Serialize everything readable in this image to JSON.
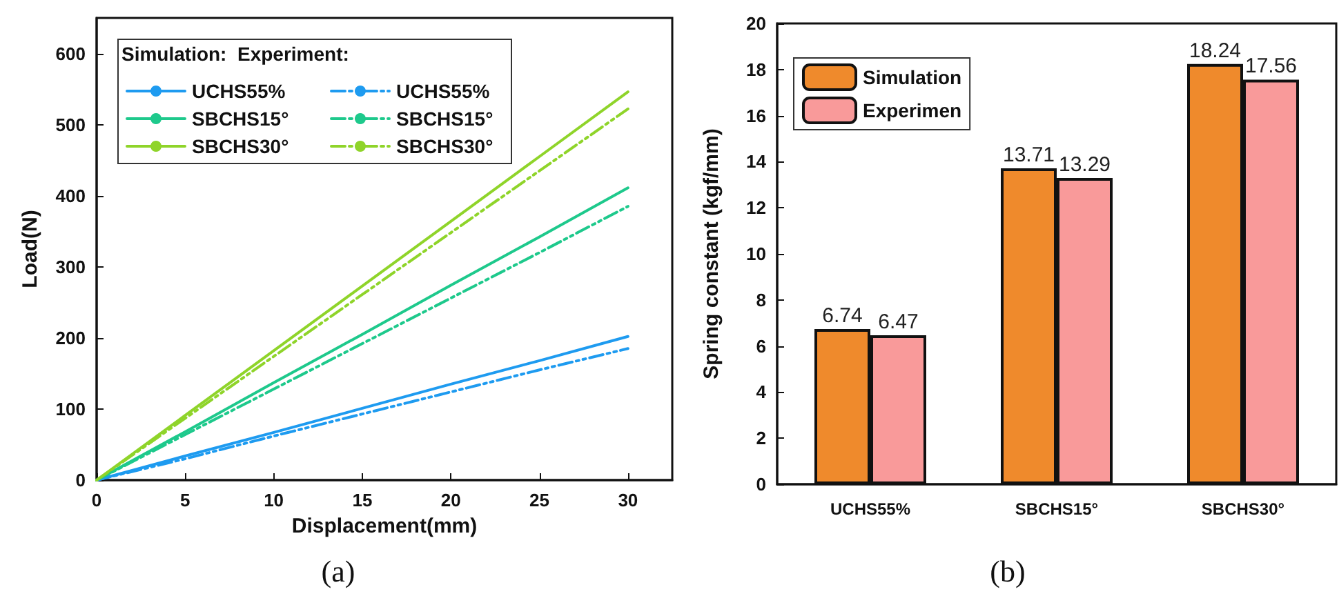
{
  "chart_data": [
    {
      "type": "line",
      "title": "(a)",
      "xlabel": "Displacement(mm)",
      "ylabel": "Load(N)",
      "legend_title": "Simulation:  Experiment:",
      "legend": "top left",
      "grid": false,
      "marker": "none",
      "x": [
        0,
        5,
        10,
        15,
        20,
        25,
        30
      ],
      "xlim": [
        0,
        32.5
      ],
      "xticks": [
        0,
        5,
        10,
        15,
        20,
        25,
        30
      ],
      "ylim": [
        0,
        650
      ],
      "yticks": [
        0,
        100,
        200,
        300,
        400,
        500,
        600
      ],
      "series": [
        {
          "name": "UCHS55%",
          "color": "#1e9bf0",
          "line_style": "solid",
          "values": [
            0,
            34,
            67,
            101,
            135,
            168,
            202
          ]
        },
        {
          "name": "SBCHS15°",
          "color": "#1ec98c",
          "line_style": "solid",
          "values": [
            0,
            68,
            137,
            205,
            274,
            342,
            411
          ]
        },
        {
          "name": "SBCHS30°",
          "color": "#8fd42a",
          "line_style": "solid",
          "values": [
            0,
            91,
            182,
            273,
            364,
            455,
            546
          ]
        },
        {
          "name": "UCHS55%",
          "color": "#1e9bf0",
          "line_style": "dashed",
          "values": [
            0,
            30,
            62,
            93,
            124,
            155,
            185
          ]
        },
        {
          "name": "SBCHS15°",
          "color": "#1ec98c",
          "line_style": "dashed",
          "values": [
            0,
            64,
            128,
            192,
            256,
            320,
            385
          ]
        },
        {
          "name": "SBCHS30°",
          "color": "#8fd42a",
          "line_style": "dashed",
          "values": [
            0,
            87,
            174,
            261,
            348,
            435,
            522
          ]
        }
      ]
    },
    {
      "type": "bar",
      "title": "(b)",
      "ylabel": "Spring constant (kgf/mm)",
      "legend": "top left",
      "grid": false,
      "data_labels": true,
      "categories": [
        "UCHS55%",
        "SBCHS15°",
        "SBCHS30°"
      ],
      "ylim": [
        0,
        20
      ],
      "yticks": [
        0,
        2,
        4,
        6,
        8,
        10,
        12,
        14,
        16,
        18,
        20
      ],
      "series": [
        {
          "name": "Simulation",
          "color": "#ef8a2c",
          "values": [
            6.74,
            13.71,
            18.24
          ]
        },
        {
          "name": "Experimen",
          "color": "#f99a9a",
          "values": [
            6.47,
            13.29,
            17.56
          ]
        }
      ]
    }
  ]
}
